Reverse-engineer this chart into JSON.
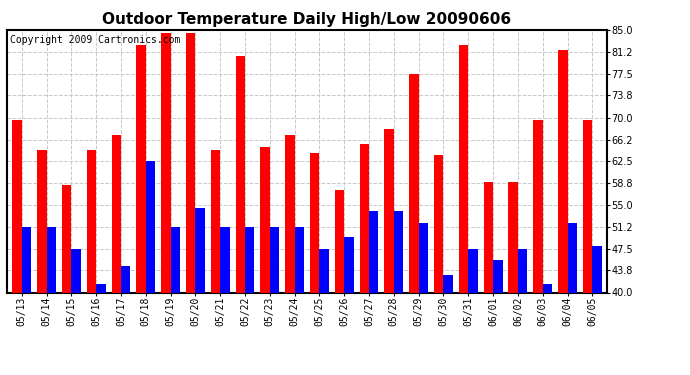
{
  "title": "Outdoor Temperature Daily High/Low 20090606",
  "copyright": "Copyright 2009 Cartronics.com",
  "dates": [
    "05/13",
    "05/14",
    "05/15",
    "05/16",
    "05/17",
    "05/18",
    "05/19",
    "05/20",
    "05/21",
    "05/22",
    "05/23",
    "05/24",
    "05/25",
    "05/26",
    "05/27",
    "05/28",
    "05/29",
    "05/30",
    "05/31",
    "06/01",
    "06/02",
    "06/03",
    "06/04",
    "06/05"
  ],
  "highs": [
    69.5,
    64.5,
    58.5,
    64.5,
    67.0,
    82.5,
    84.5,
    84.5,
    64.5,
    80.5,
    65.0,
    67.0,
    64.0,
    57.5,
    65.5,
    68.0,
    77.5,
    63.5,
    82.5,
    59.0,
    59.0,
    69.5,
    81.5,
    69.5
  ],
  "lows": [
    51.2,
    51.2,
    47.5,
    41.5,
    44.5,
    62.5,
    51.2,
    54.5,
    51.2,
    51.2,
    51.2,
    51.2,
    47.5,
    49.5,
    54.0,
    54.0,
    52.0,
    43.0,
    47.5,
    45.5,
    47.5,
    41.5,
    52.0,
    48.0
  ],
  "high_color": "#ff0000",
  "low_color": "#0000ff",
  "bg_color": "#ffffff",
  "grid_color": "#c8c8c8",
  "ylim_min": 40.0,
  "ylim_max": 85.0,
  "yticks": [
    40.0,
    43.8,
    47.5,
    51.2,
    55.0,
    58.8,
    62.5,
    66.2,
    70.0,
    73.8,
    77.5,
    81.2,
    85.0
  ],
  "bar_width": 0.38,
  "title_fontsize": 11,
  "tick_fontsize": 7,
  "copyright_fontsize": 7
}
